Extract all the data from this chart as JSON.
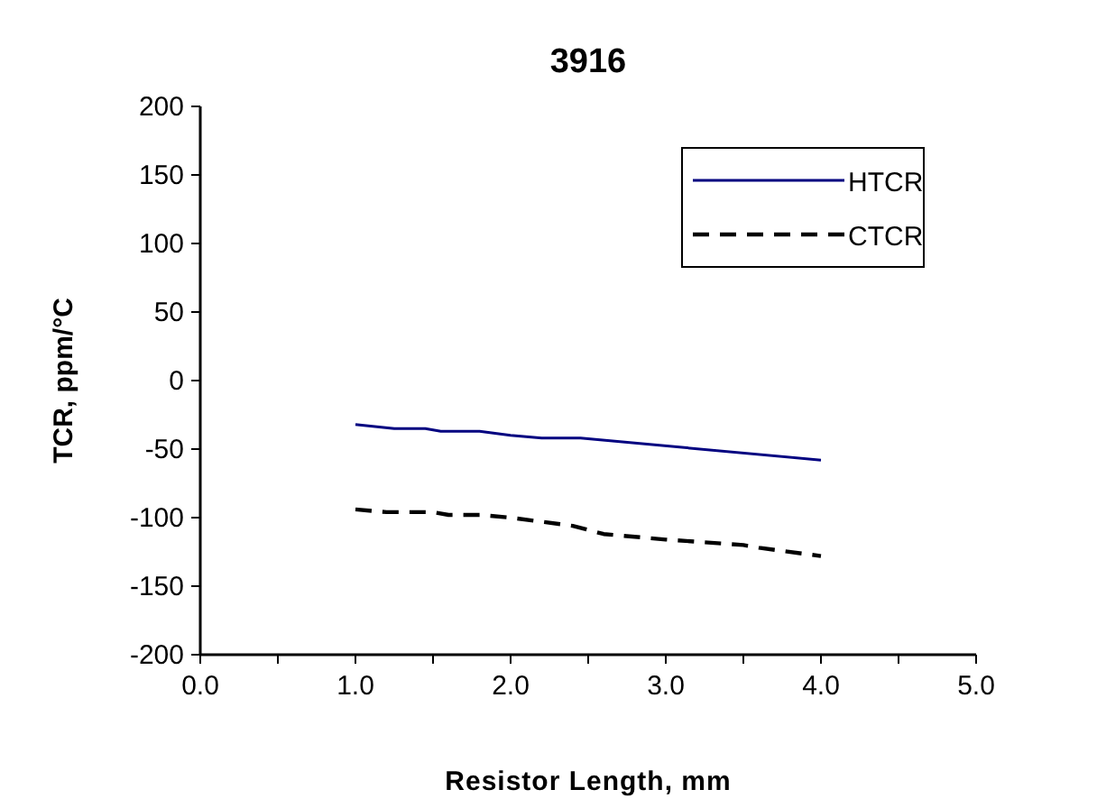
{
  "chart_data": {
    "type": "line",
    "title": "3916",
    "xlabel": "Resistor Length, mm",
    "ylabel": "TCR, ppm/°C",
    "xlim": [
      0,
      5
    ],
    "ylim": [
      -200,
      200
    ],
    "xticks": [
      {
        "value": 0,
        "label": "0.0"
      },
      {
        "value": 0.5,
        "label": null
      },
      {
        "value": 1,
        "label": "1.0"
      },
      {
        "value": 1.5,
        "label": null
      },
      {
        "value": 2,
        "label": "2.0"
      },
      {
        "value": 2.5,
        "label": null
      },
      {
        "value": 3,
        "label": "3.0"
      },
      {
        "value": 3.5,
        "label": null
      },
      {
        "value": 4,
        "label": "4.0"
      },
      {
        "value": 4.5,
        "label": null
      },
      {
        "value": 5,
        "label": "5.0"
      }
    ],
    "yticks": [
      -200,
      -150,
      -100,
      -50,
      0,
      50,
      100,
      150,
      200
    ],
    "legend": "top right",
    "series": [
      {
        "name": "HTCR",
        "color": "#000080",
        "line_style": "solid",
        "x": [
          1,
          1.25,
          1.45,
          1.55,
          1.8,
          2,
          2.2,
          2.45,
          4
        ],
        "values": [
          -32,
          -35,
          -35,
          -37,
          -37,
          -40,
          -42,
          -42,
          -58
        ]
      },
      {
        "name": "CTCR",
        "color": "#000000",
        "line_style": "dashed",
        "x": [
          1,
          1.2,
          1.5,
          1.6,
          1.8,
          2,
          2.4,
          2.6,
          3,
          3.5,
          3.6,
          4
        ],
        "values": [
          -94,
          -96,
          -96,
          -98,
          -98,
          -100,
          -106,
          -112,
          -116,
          -120,
          -122,
          -128
        ]
      }
    ]
  }
}
